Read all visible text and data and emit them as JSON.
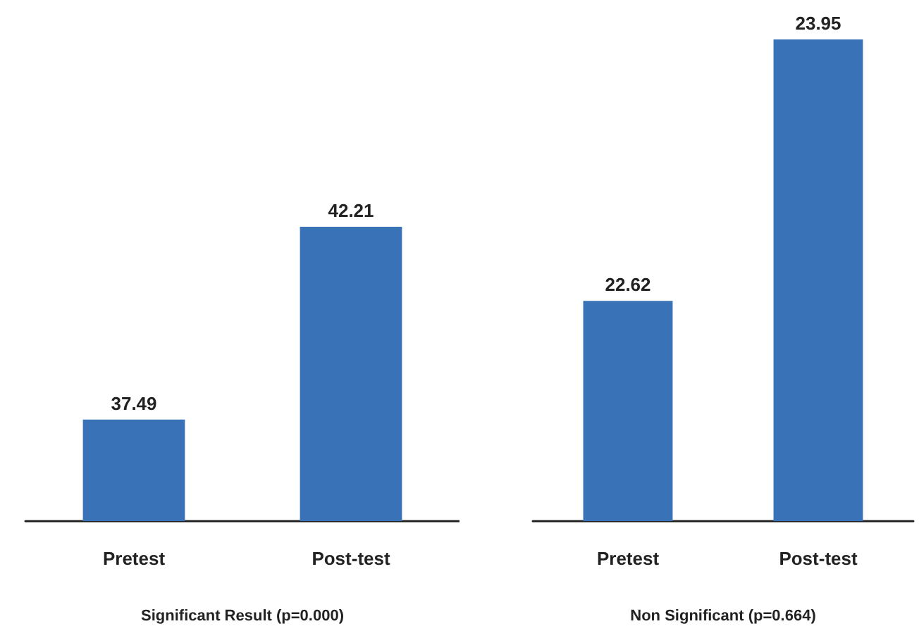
{
  "chart_data": [
    {
      "type": "bar",
      "categories": [
        "Pretest",
        "Post-test"
      ],
      "values": [
        37.49,
        42.21
      ],
      "color": "#3a72b8",
      "xlabel": "Significant Result (p=0.000)",
      "ylim": [
        35,
        42.21
      ],
      "data_labels": true,
      "tick_labels": "x",
      "grid": false
    },
    {
      "type": "bar",
      "categories": [
        "Pretest",
        "Post-test"
      ],
      "values": [
        22.62,
        23.95
      ],
      "color": "#3a72b8",
      "xlabel": "Non Significant (p=0.664)",
      "ylim": [
        21.5,
        23.95
      ],
      "data_labels": true,
      "tick_labels": "x",
      "grid": false
    }
  ]
}
